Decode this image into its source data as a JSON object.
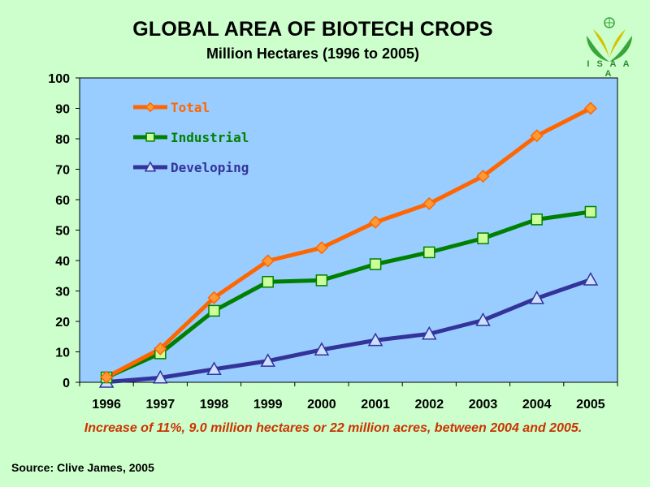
{
  "header": {
    "title": "GLOBAL AREA OF BIOTECH CROPS",
    "subtitle": "Million Hectares (1996 to 2005)",
    "logo_text": "I S A A A"
  },
  "footnote": "Increase of 11%, 9.0 million hectares or 22 million acres, between 2004 and 2005.",
  "source": "Source: Clive James, 2005",
  "colors": {
    "background": "#ccffcc",
    "plot_area": "#99ccff",
    "total": "#ff6600",
    "total_marker": "#ff9933",
    "industrial": "#008000",
    "industrial_marker": "#ccff99",
    "developing": "#333399",
    "developing_marker": "#cce0ff",
    "footnote": "#cc3300"
  },
  "chart_data": {
    "type": "line",
    "title": "GLOBAL AREA OF BIOTECH CROPS",
    "subtitle": "Million Hectares (1996 to 2005)",
    "xlabel": "",
    "ylabel": "",
    "categories": [
      "1996",
      "1997",
      "1998",
      "1999",
      "2000",
      "2001",
      "2002",
      "2003",
      "2004",
      "2005"
    ],
    "ylim": [
      0,
      100
    ],
    "yticks": [
      0,
      10,
      20,
      30,
      40,
      50,
      60,
      70,
      80,
      90,
      100
    ],
    "grid": false,
    "legend_position": "top-left",
    "series": [
      {
        "name": "Total",
        "marker": "diamond",
        "values": [
          1.7,
          11.0,
          27.8,
          39.9,
          44.2,
          52.6,
          58.7,
          67.7,
          81.0,
          90.0
        ]
      },
      {
        "name": "Industrial",
        "marker": "square",
        "values": [
          1.6,
          9.5,
          23.5,
          33.0,
          33.5,
          38.8,
          42.7,
          47.3,
          53.5,
          56.0
        ]
      },
      {
        "name": "Developing",
        "marker": "triangle",
        "values": [
          0.1,
          1.5,
          4.3,
          7.0,
          10.7,
          13.8,
          15.9,
          20.4,
          27.6,
          33.7
        ]
      }
    ]
  }
}
